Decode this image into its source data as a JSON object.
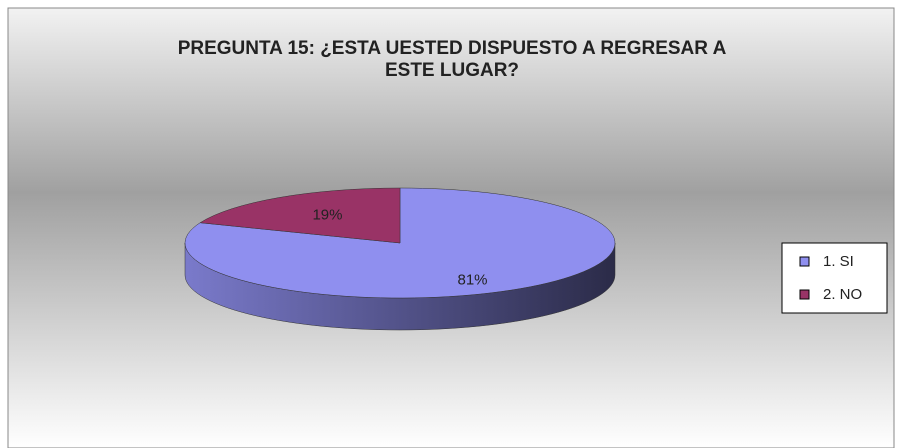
{
  "chart_data": {
    "type": "pie",
    "title": "PREGUNTA 15: ¿ESTA UESTED DISPUESTO A REGRESAR A ESTE LUGAR?",
    "categories": [
      "1. SI",
      "2. NO"
    ],
    "values": [
      81,
      19
    ],
    "value_labels": [
      "81%",
      "19%"
    ],
    "colors": [
      "#8f8fef",
      "#993366"
    ],
    "legend": "right"
  }
}
